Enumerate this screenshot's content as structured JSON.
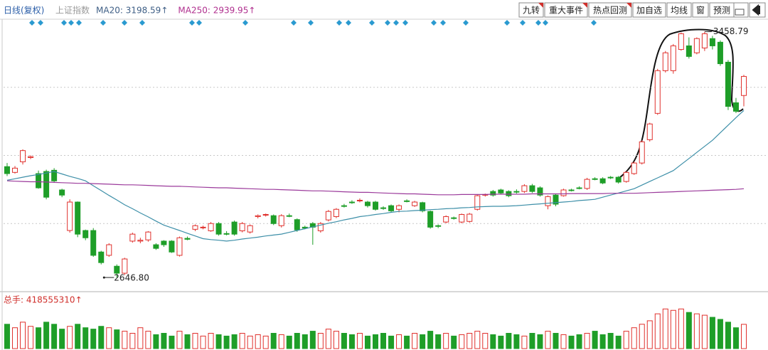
{
  "toolbar": {
    "buttons": [
      "九转",
      "重大事件",
      "热点回测",
      "加自选",
      "均线",
      "窗",
      "预测"
    ]
  },
  "chart_data": [
    {
      "type": "candlestick",
      "period": "日线(复权)",
      "title": "上证指数",
      "up_color": "#e0302c",
      "down_color": "#1e9e28",
      "open": [
        3013,
        2994,
        3029,
        3043,
        2990,
        2997,
        3001,
        2936,
        2802,
        2896,
        2802,
        2802,
        2731,
        2720,
        2684,
        2661,
        2767,
        2767,
        2771,
        2755,
        2767,
        2767,
        2720,
        2776,
        2806,
        2813,
        2801,
        2825,
        2792,
        2830,
        2801,
        2797,
        2848,
        2853,
        2851,
        2818,
        2851,
        2838,
        2813,
        2825,
        2801,
        2837,
        2848,
        2884,
        2896,
        2900,
        2896,
        2896,
        2877,
        2884,
        2872,
        2900,
        2884,
        2894,
        2865,
        2818,
        2830,
        2844,
        2830,
        2832,
        2872,
        2919,
        2931,
        2936,
        2931,
        2931,
        2931,
        2950,
        2943,
        2884,
        2919,
        2917,
        2936,
        2943,
        2941,
        2973,
        2973,
        2978,
        2978,
        2964,
        2990,
        3025,
        3102,
        3189,
        3330,
        3330,
        3400,
        3412,
        3389,
        3405,
        3436,
        3424,
        3358,
        3224,
        3248
      ],
      "close": [
        2990,
        3008,
        3066,
        3046,
        2943,
        2912,
        2966,
        2919,
        2896,
        2790,
        2778,
        2720,
        2696,
        2755,
        2661,
        2708,
        2790,
        2770,
        2797,
        2743,
        2755,
        2731,
        2778,
        2773,
        2818,
        2813,
        2825,
        2790,
        2790,
        2790,
        2825,
        2818,
        2851,
        2855,
        2825,
        2851,
        2849,
        2804,
        2810,
        2813,
        2825,
        2865,
        2872,
        2882,
        2895,
        2902,
        2884,
        2872,
        2875,
        2867,
        2884,
        2898,
        2896,
        2867,
        2813,
        2816,
        2848,
        2842,
        2855,
        2856,
        2917,
        2921,
        2919,
        2926,
        2917,
        2929,
        2950,
        2931,
        2919,
        2914,
        2889,
        2936,
        2934,
        2941,
        2971,
        2971,
        2959,
        2976,
        2962,
        2994,
        3025,
        3095,
        3154,
        3330,
        3389,
        3412,
        3452,
        3377,
        3436,
        3452,
        3412,
        3353,
        3212,
        3196,
        3311
      ],
      "high": [
        3025,
        3015,
        3070,
        3050,
        3000,
        3003,
        3008,
        2940,
        2905,
        2898,
        2805,
        2810,
        2735,
        2760,
        2690,
        2712,
        2795,
        2778,
        2800,
        2760,
        2770,
        2770,
        2782,
        2782,
        2822,
        2818,
        2830,
        2830,
        2800,
        2835,
        2830,
        2822,
        2855,
        2858,
        2855,
        2856,
        2858,
        2842,
        2818,
        2830,
        2830,
        2870,
        2876,
        2890,
        2902,
        2908,
        2900,
        2900,
        2882,
        2888,
        2888,
        2905,
        2900,
        2897,
        2868,
        2822,
        2852,
        2848,
        2858,
        2860,
        2922,
        2924,
        2936,
        2940,
        2935,
        2938,
        2955,
        2956,
        2948,
        2918,
        2922,
        2940,
        2940,
        2948,
        2976,
        2978,
        2978,
        2982,
        2982,
        2998,
        3030,
        3100,
        3158,
        3336,
        3395,
        3418,
        3456,
        3440,
        3440,
        3458.79,
        3445,
        3430,
        3365,
        3240,
        3316
      ],
      "low": [
        2982,
        2990,
        3020,
        3038,
        2940,
        2905,
        2960,
        2912,
        2795,
        2780,
        2770,
        2715,
        2690,
        2715,
        2646.8,
        2655,
        2762,
        2760,
        2765,
        2738,
        2748,
        2728,
        2716,
        2770,
        2800,
        2806,
        2798,
        2785,
        2786,
        2785,
        2796,
        2792,
        2842,
        2848,
        2820,
        2812,
        2846,
        2798,
        2806,
        2755,
        2795,
        2832,
        2843,
        2878,
        2890,
        2895,
        2878,
        2868,
        2870,
        2862,
        2862,
        2895,
        2880,
        2862,
        2808,
        2810,
        2826,
        2838,
        2826,
        2828,
        2868,
        2914,
        2914,
        2922,
        2912,
        2924,
        2926,
        2926,
        2914,
        2872,
        2882,
        2914,
        2931,
        2938,
        2936,
        2968,
        2955,
        2972,
        2957,
        2960,
        2986,
        3020,
        3096,
        3184,
        3324,
        3320,
        3396,
        3370,
        3384,
        3395,
        3400,
        3346,
        3200,
        3190,
        3212
      ],
      "series": [
        {
          "name": "MA20: 3198.59↑",
          "color": "#3d8fa8",
          "legend_color": "#3f5f86",
          "values": [
            2968,
            2973,
            2978,
            2983,
            2987,
            2992,
            2997,
            2989,
            2981,
            2974,
            2966,
            2950,
            2934,
            2918,
            2903,
            2887,
            2874,
            2860,
            2847,
            2833,
            2820,
            2811,
            2802,
            2793,
            2784,
            2775,
            2772,
            2770,
            2767,
            2770,
            2774,
            2777,
            2780,
            2784,
            2787,
            2790,
            2796,
            2802,
            2808,
            2814,
            2820,
            2826,
            2831,
            2837,
            2842,
            2848,
            2851,
            2855,
            2858,
            2862,
            2865,
            2866,
            2868,
            2869,
            2871,
            2872,
            2874,
            2875,
            2877,
            2878,
            2880,
            2881,
            2882,
            2882,
            2883,
            2884,
            2886,
            2888,
            2890,
            2892,
            2894,
            2896,
            2898,
            2901,
            2903,
            2905,
            2912,
            2919,
            2926,
            2933,
            2940,
            2952,
            2964,
            2976,
            2988,
            3000,
            3020,
            3040,
            3060,
            3080,
            3100,
            3125,
            3150,
            3175,
            3198.59
          ]
        },
        {
          "name": "MA250: 2939.95↑",
          "color": "#9b3a9b",
          "legend_color": "#b0308f",
          "values": [
            2966,
            2965,
            2964,
            2963,
            2963,
            2962,
            2961,
            2960,
            2959,
            2958,
            2958,
            2957,
            2956,
            2955,
            2954,
            2953,
            2953,
            2952,
            2951,
            2950,
            2949,
            2948,
            2948,
            2947,
            2946,
            2945,
            2944,
            2943,
            2943,
            2942,
            2941,
            2940,
            2939,
            2938,
            2938,
            2937,
            2936,
            2935,
            2934,
            2933,
            2933,
            2932,
            2931,
            2930,
            2929,
            2928,
            2928,
            2927,
            2926,
            2925,
            2924,
            2923,
            2923,
            2922,
            2921,
            2920,
            2920,
            2920,
            2921,
            2921,
            2921,
            2921,
            2922,
            2922,
            2922,
            2922,
            2922,
            2923,
            2923,
            2923,
            2923,
            2923,
            2924,
            2924,
            2924,
            2924,
            2924,
            2925,
            2925,
            2925,
            2925,
            2926,
            2927,
            2928,
            2929,
            2930,
            2931,
            2932,
            2933,
            2934,
            2935,
            2936,
            2937,
            2938,
            2939.95
          ]
        }
      ],
      "annotations": [
        {
          "value": 3458.79,
          "label": "3458.79"
        },
        {
          "value": 2646.8,
          "label": "2646.80"
        }
      ],
      "ylim": [
        2600,
        3500
      ],
      "yticks": [
        2825,
        3050,
        3275
      ],
      "grid": true
    },
    {
      "type": "bar",
      "title": "总手: 418555310↑",
      "values": [
        420000000,
        360000000,
        456000000,
        384000000,
        360000000,
        456000000,
        420000000,
        336000000,
        384000000,
        420000000,
        360000000,
        336000000,
        384000000,
        360000000,
        324000000,
        300000000,
        264000000,
        360000000,
        300000000,
        240000000,
        264000000,
        216000000,
        300000000,
        240000000,
        264000000,
        216000000,
        264000000,
        240000000,
        216000000,
        240000000,
        264000000,
        216000000,
        240000000,
        216000000,
        264000000,
        240000000,
        216000000,
        264000000,
        240000000,
        300000000,
        264000000,
        336000000,
        300000000,
        264000000,
        240000000,
        264000000,
        216000000,
        240000000,
        264000000,
        216000000,
        240000000,
        216000000,
        264000000,
        240000000,
        300000000,
        240000000,
        264000000,
        216000000,
        240000000,
        264000000,
        300000000,
        264000000,
        240000000,
        216000000,
        264000000,
        240000000,
        216000000,
        264000000,
        240000000,
        300000000,
        264000000,
        240000000,
        216000000,
        240000000,
        264000000,
        300000000,
        240000000,
        264000000,
        216000000,
        300000000,
        360000000,
        420000000,
        480000000,
        600000000,
        684000000,
        660000000,
        684000000,
        624000000,
        600000000,
        576000000,
        540000000,
        504000000,
        456000000,
        360000000,
        418555310
      ],
      "ylim": [
        0,
        700000000
      ]
    }
  ]
}
